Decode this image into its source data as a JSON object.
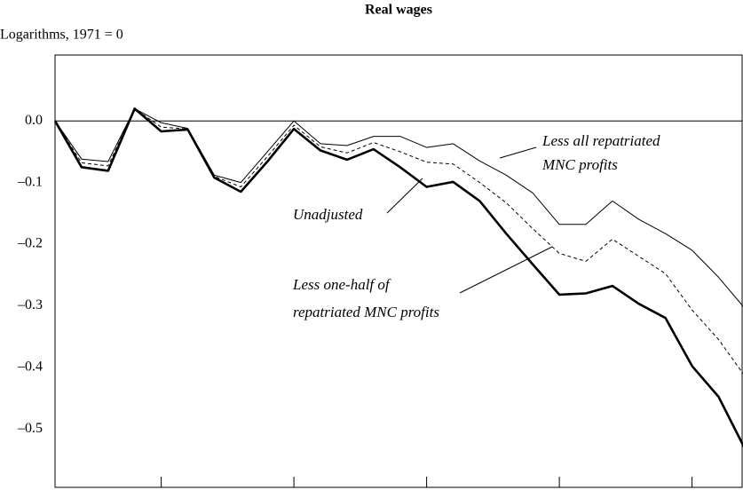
{
  "chart_data": {
    "type": "line",
    "title": "Real wages",
    "subtitle": "Logarithms, 1971 = 0",
    "categories": [
      null,
      null,
      null,
      null,
      null,
      null,
      null,
      null,
      null,
      null,
      null,
      null,
      null,
      null,
      null,
      null,
      null,
      null,
      null,
      null,
      null,
      null,
      null,
      null,
      null,
      null,
      null
    ],
    "ylim": [
      -0.595,
      0.107
    ],
    "yticks": [
      {
        "value": 0,
        "label": "0.0"
      },
      {
        "value": -0.1,
        "label": "–0.1"
      },
      {
        "value": -0.2,
        "label": "–0.2"
      },
      {
        "value": -0.3,
        "label": "–0.3"
      },
      {
        "value": -0.4,
        "label": "–0.4"
      },
      {
        "value": -0.5,
        "label": "–0.5"
      }
    ],
    "series": [
      {
        "name": [
          "Less all repatriated",
          "MNC profits"
        ],
        "color": "#000000",
        "style": "thin",
        "values": [
          0,
          -0.062,
          -0.066,
          0.02,
          -0.003,
          -0.012,
          -0.088,
          -0.1,
          -0.05,
          0,
          -0.037,
          -0.04,
          -0.025,
          -0.025,
          -0.043,
          -0.037,
          -0.065,
          -0.088,
          -0.117,
          -0.168,
          -0.168,
          -0.13,
          -0.16,
          -0.183,
          -0.21,
          -0.254,
          -0.305
        ]
      },
      {
        "name": [
          "Less one-half of",
          "repatriated MNC profits"
        ],
        "color": "#000000",
        "style": "dashed",
        "values": [
          0,
          -0.068,
          -0.073,
          0.02,
          -0.01,
          -0.013,
          -0.09,
          -0.107,
          -0.058,
          -0.007,
          -0.042,
          -0.052,
          -0.035,
          -0.05,
          -0.067,
          -0.07,
          -0.1,
          -0.133,
          -0.175,
          -0.215,
          -0.228,
          -0.192,
          -0.22,
          -0.248,
          -0.307,
          -0.355,
          -0.415
        ]
      },
      {
        "name": [
          "Unadjusted"
        ],
        "color": "#000000",
        "style": "thick",
        "values": [
          0,
          -0.075,
          -0.081,
          0.02,
          -0.017,
          -0.014,
          -0.092,
          -0.115,
          -0.066,
          -0.013,
          -0.048,
          -0.063,
          -0.046,
          -0.075,
          -0.107,
          -0.099,
          -0.13,
          -0.183,
          -0.233,
          -0.282,
          -0.28,
          -0.268,
          -0.297,
          -0.32,
          -0.398,
          -0.448,
          -0.533
        ]
      }
    ]
  }
}
